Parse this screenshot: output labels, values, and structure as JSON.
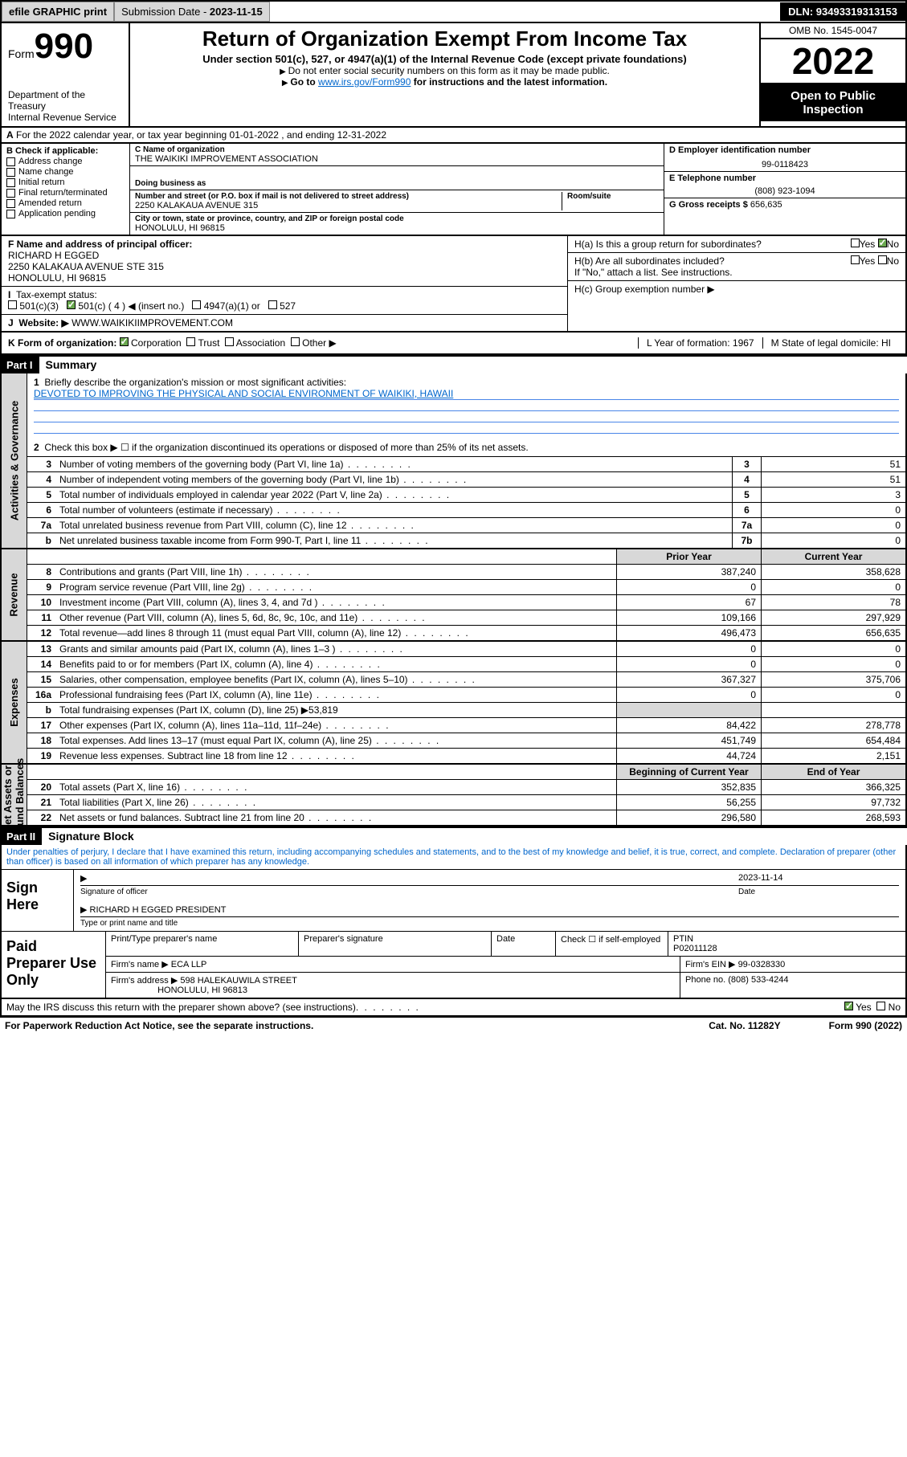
{
  "topbar": {
    "efile": "efile GRAPHIC print",
    "sub_lbl": "Submission Date - ",
    "sub_date": "2023-11-15",
    "dln": "DLN: 93493319313153"
  },
  "header": {
    "form_word": "Form",
    "form_num": "990",
    "dept": "Department of the Treasury",
    "irs": "Internal Revenue Service",
    "title": "Return of Organization Exempt From Income Tax",
    "sub1": "Under section 501(c), 527, or 4947(a)(1) of the Internal Revenue Code (except private foundations)",
    "sub2": "Do not enter social security numbers on this form as it may be made public.",
    "sub3_a": "Go to ",
    "sub3_link": "www.irs.gov/Form990",
    "sub3_b": " for instructions and the latest information.",
    "omb": "OMB No. 1545-0047",
    "year": "2022",
    "open": "Open to Public Inspection"
  },
  "rowA": {
    "text": "For the 2022 calendar year, or tax year beginning 01-01-2022    , and ending 12-31-2022",
    "label": "A"
  },
  "B": {
    "hdr": "B Check if applicable:",
    "items": [
      "Address change",
      "Name change",
      "Initial return",
      "Final return/terminated",
      "Amended return",
      "Application pending"
    ]
  },
  "C": {
    "name_lbl": "C Name of organization",
    "name": "THE WAIKIKI IMPROVEMENT ASSOCIATION",
    "dba_lbl": "Doing business as",
    "addr_lbl": "Number and street (or P.O. box if mail is not delivered to street address)",
    "room_lbl": "Room/suite",
    "addr": "2250 KALAKAUA AVENUE 315",
    "city_lbl": "City or town, state or province, country, and ZIP or foreign postal code",
    "city": "HONOLULU, HI  96815"
  },
  "D": {
    "ein_lbl": "D Employer identification number",
    "ein": "99-0118423",
    "tel_lbl": "E Telephone number",
    "tel": "(808) 923-1094",
    "gross_lbl": "G Gross receipts $ ",
    "gross": "656,635"
  },
  "F": {
    "lbl": "F  Name and address of principal officer:",
    "name": "RICHARD H EGGED",
    "addr1": "2250 KALAKAUA AVENUE STE 315",
    "addr2": "HONOLULU, HI  96815"
  },
  "H": {
    "a": "H(a)  Is this a group return for subordinates?",
    "b": "H(b)  Are all subordinates included?",
    "b_note": "If \"No,\" attach a list. See instructions.",
    "c": "H(c)  Group exemption number ▶",
    "yes": "Yes",
    "no": "No"
  },
  "I": {
    "lbl": "Tax-exempt status:",
    "opts": [
      "501(c)(3)",
      "501(c) ( 4 ) ◀ (insert no.)",
      "4947(a)(1) or",
      "527"
    ]
  },
  "J": {
    "lbl": "Website: ▶",
    "val": "WWW.WAIKIKIIMPROVEMENT.COM"
  },
  "K": {
    "lbl": "K Form of organization:",
    "opts": [
      "Corporation",
      "Trust",
      "Association",
      "Other ▶"
    ],
    "L": "L Year of formation: 1967",
    "M": "M State of legal domicile: HI"
  },
  "part1": {
    "hdr": "Part I",
    "title": "Summary",
    "q1": "Briefly describe the organization's mission or most significant activities:",
    "mission": "DEVOTED TO IMPROVING THE PHYSICAL AND SOCIAL ENVIRONMENT OF WAIKIKI, HAWAII",
    "q2": "Check this box ▶ ☐  if the organization discontinued its operations or disposed of more than 25% of its net assets."
  },
  "gov_rows": [
    {
      "n": "3",
      "d": "Number of voting members of the governing body (Part VI, line 1a)",
      "box": "3",
      "v": "51"
    },
    {
      "n": "4",
      "d": "Number of independent voting members of the governing body (Part VI, line 1b)",
      "box": "4",
      "v": "51"
    },
    {
      "n": "5",
      "d": "Total number of individuals employed in calendar year 2022 (Part V, line 2a)",
      "box": "5",
      "v": "3"
    },
    {
      "n": "6",
      "d": "Total number of volunteers (estimate if necessary)",
      "box": "6",
      "v": "0"
    },
    {
      "n": "7a",
      "d": "Total unrelated business revenue from Part VIII, column (C), line 12",
      "box": "7a",
      "v": "0"
    },
    {
      "n": "b",
      "d": "Net unrelated business taxable income from Form 990-T, Part I, line 11",
      "box": "7b",
      "v": "0"
    }
  ],
  "rev_hdr": {
    "py": "Prior Year",
    "cy": "Current Year"
  },
  "rev_rows": [
    {
      "n": "8",
      "d": "Contributions and grants (Part VIII, line 1h)",
      "py": "387,240",
      "cy": "358,628"
    },
    {
      "n": "9",
      "d": "Program service revenue (Part VIII, line 2g)",
      "py": "0",
      "cy": "0"
    },
    {
      "n": "10",
      "d": "Investment income (Part VIII, column (A), lines 3, 4, and 7d )",
      "py": "67",
      "cy": "78"
    },
    {
      "n": "11",
      "d": "Other revenue (Part VIII, column (A), lines 5, 6d, 8c, 9c, 10c, and 11e)",
      "py": "109,166",
      "cy": "297,929"
    },
    {
      "n": "12",
      "d": "Total revenue—add lines 8 through 11 (must equal Part VIII, column (A), line 12)",
      "py": "496,473",
      "cy": "656,635"
    }
  ],
  "exp_rows": [
    {
      "n": "13",
      "d": "Grants and similar amounts paid (Part IX, column (A), lines 1–3 )",
      "py": "0",
      "cy": "0"
    },
    {
      "n": "14",
      "d": "Benefits paid to or for members (Part IX, column (A), line 4)",
      "py": "0",
      "cy": "0"
    },
    {
      "n": "15",
      "d": "Salaries, other compensation, employee benefits (Part IX, column (A), lines 5–10)",
      "py": "367,327",
      "cy": "375,706"
    },
    {
      "n": "16a",
      "d": "Professional fundraising fees (Part IX, column (A), line 11e)",
      "py": "0",
      "cy": "0"
    },
    {
      "n": "b",
      "d": "Total fundraising expenses (Part IX, column (D), line 25) ▶53,819",
      "py": "",
      "cy": "",
      "shade": true
    },
    {
      "n": "17",
      "d": "Other expenses (Part IX, column (A), lines 11a–11d, 11f–24e)",
      "py": "84,422",
      "cy": "278,778"
    },
    {
      "n": "18",
      "d": "Total expenses. Add lines 13–17 (must equal Part IX, column (A), line 25)",
      "py": "451,749",
      "cy": "654,484"
    },
    {
      "n": "19",
      "d": "Revenue less expenses. Subtract line 18 from line 12",
      "py": "44,724",
      "cy": "2,151"
    }
  ],
  "na_hdr": {
    "by": "Beginning of Current Year",
    "ey": "End of Year"
  },
  "na_rows": [
    {
      "n": "20",
      "d": "Total assets (Part X, line 16)",
      "py": "352,835",
      "cy": "366,325"
    },
    {
      "n": "21",
      "d": "Total liabilities (Part X, line 26)",
      "py": "56,255",
      "cy": "97,732"
    },
    {
      "n": "22",
      "d": "Net assets or fund balances. Subtract line 21 from line 20",
      "py": "296,580",
      "cy": "268,593"
    }
  ],
  "part2": {
    "hdr": "Part II",
    "title": "Signature Block",
    "decl": "Under penalties of perjury, I declare that I have examined this return, including accompanying schedules and statements, and to the best of my knowledge and belief, it is true, correct, and complete. Declaration of preparer (other than officer) is based on all information of which preparer has any knowledge."
  },
  "sign": {
    "here": "Sign Here",
    "sig_lbl": "Signature of officer",
    "date_lbl": "Date",
    "date": "2023-11-14",
    "name": "RICHARD H EGGED  PRESIDENT",
    "name_lbl": "Type or print name and title"
  },
  "prep": {
    "lbl": "Paid Preparer Use Only",
    "h1": "Print/Type preparer's name",
    "h2": "Preparer's signature",
    "h3": "Date",
    "h4": "Check ☐ if self-employed",
    "h5_lbl": "PTIN",
    "h5": "P02011128",
    "firm_lbl": "Firm's name   ▶",
    "firm": "ECA LLP",
    "ein_lbl": "Firm's EIN ▶",
    "ein": "99-0328330",
    "addr_lbl": "Firm's address ▶",
    "addr1": "598 HALEKAUWILA STREET",
    "addr2": "HONOLULU, HI  96813",
    "phone_lbl": "Phone no.",
    "phone": "(808) 533-4244"
  },
  "footer": {
    "q": "May the IRS discuss this return with the preparer shown above? (see instructions)",
    "yes": "Yes",
    "no": "No",
    "paperwork": "For Paperwork Reduction Act Notice, see the separate instructions.",
    "cat": "Cat. No. 11282Y",
    "form": "Form 990 (2022)"
  },
  "colors": {
    "link": "#0066cc",
    "shade": "#d8d8d8",
    "check": "#6aa84f",
    "uline": "#4a86e8"
  }
}
